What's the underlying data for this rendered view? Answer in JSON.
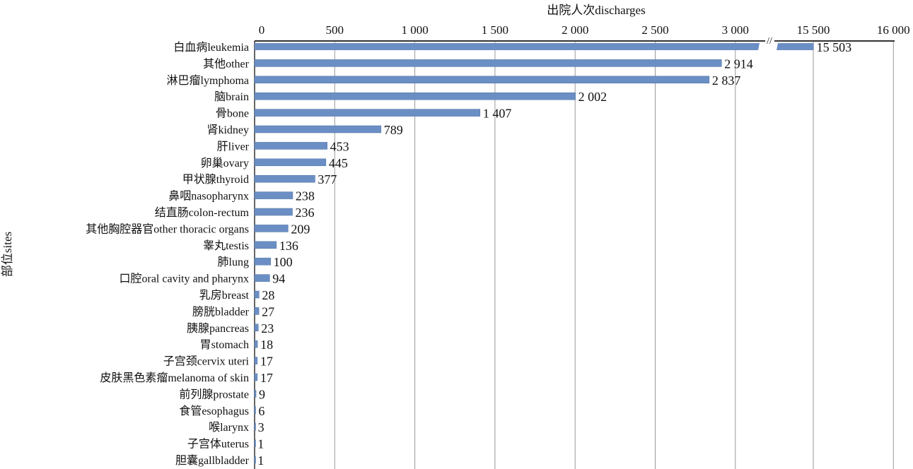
{
  "chart_data": {
    "type": "bar",
    "orientation": "horizontal",
    "title": "",
    "xlabel": "出院人次discharges",
    "ylabel": "部位sites",
    "xlim": [
      0,
      16000
    ],
    "axis_break": [
      3150,
      15300
    ],
    "x_ticks": [
      0,
      500,
      1000,
      1500,
      2000,
      2500,
      3000,
      15500,
      16000
    ],
    "x_tick_labels": [
      "0",
      "500",
      "1 000",
      "1 500",
      "2 000",
      "2 500",
      "3 000",
      "15 500",
      "16 000"
    ],
    "grid": true,
    "bar_color": "#6b8fc4",
    "categories": [
      "白血病leukemia",
      "其他other",
      "淋巴瘤lymphoma",
      "脑brain",
      "骨bone",
      "肾kidney",
      "肝liver",
      "卵巢ovary",
      "甲状腺thyroid",
      "鼻咽nasopharynx",
      "结直肠colon-rectum",
      "其他胸腔器官other thoracic organs",
      "睾丸testis",
      "肺lung",
      "口腔oral cavity and pharynx",
      "乳房breast",
      "膀胱bladder",
      "胰腺pancreas",
      "胃stomach",
      "子宫颈cervix uteri",
      "皮肤黑色素瘤melanoma of skin",
      "前列腺prostate",
      "食管esophagus",
      "喉larynx",
      "子宫体uterus",
      "胆囊gallbladder"
    ],
    "values": [
      15503,
      2914,
      2837,
      2002,
      1407,
      789,
      453,
      445,
      377,
      238,
      236,
      209,
      136,
      100,
      94,
      28,
      27,
      23,
      18,
      17,
      17,
      9,
      6,
      3,
      1,
      1
    ],
    "value_labels": [
      "15 503",
      "2 914",
      "2 837",
      "2 002",
      "1 407",
      "789",
      "453",
      "445",
      "377",
      "238",
      "236",
      "209",
      "136",
      "100",
      "94",
      "28",
      "27",
      "23",
      "18",
      "17",
      "17",
      "9",
      "6",
      "3",
      "1",
      "1"
    ]
  }
}
